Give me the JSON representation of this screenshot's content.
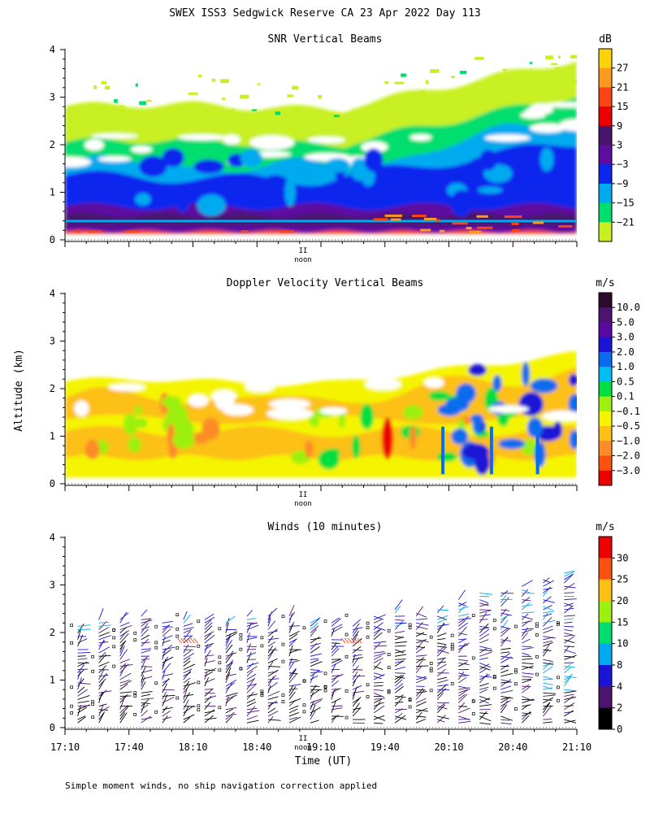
{
  "figure_title": "SWEX ISS3 Sedgwick Reserve CA  23 Apr 2022 Day 113",
  "footnote": "Simple moment winds, no ship navigation correction applied",
  "y_axis_label": "Altitude (km)",
  "x_axis_label": "Time (UT)",
  "noon_label": "noon",
  "noon_mark": "II",
  "chart_data": [
    {
      "type": "heatmap",
      "title": "SNR Vertical Beams",
      "ylim": [
        0,
        4
      ],
      "yticks": [
        "0",
        "1",
        "2",
        "3",
        "4"
      ],
      "colorbar_unit": "dB",
      "colorbar_labels": [
        "27",
        "21",
        "15",
        "9",
        "3",
        "−3",
        "−9",
        "−15",
        "−21"
      ],
      "colorbar_colors": [
        "#fcd20a",
        "#fb9a1e",
        "#fa4414",
        "#ee0000",
        "#48146c",
        "#5d0da0",
        "#0c26ee",
        "#00aaee",
        "#00de6e",
        "#c8f020"
      ]
    },
    {
      "type": "heatmap",
      "title": "Doppler Velocity Vertical Beams",
      "ylim": [
        0,
        4
      ],
      "yticks": [
        "0",
        "1",
        "2",
        "3",
        "4"
      ],
      "colorbar_unit": "m/s",
      "colorbar_labels": [
        "10.0",
        "5.0",
        "3.0",
        "2.0",
        "1.0",
        "0.5",
        "0.1",
        "−0.1",
        "−0.5",
        "−1.0",
        "−2.0",
        "−3.0"
      ],
      "colorbar_colors": [
        "#2c0a28",
        "#4a1470",
        "#5a0aa0",
        "#1a14d6",
        "#0a6cee",
        "#00bef0",
        "#00de40",
        "#9cf010",
        "#f4f400",
        "#fcc014",
        "#fc8c28",
        "#fa5010",
        "#ee0000"
      ]
    },
    {
      "type": "scatter",
      "title": "Winds (10 minutes)",
      "ylim": [
        0,
        4
      ],
      "yticks": [
        "0",
        "1",
        "2",
        "3",
        "4"
      ],
      "colorbar_unit": "m/s",
      "colorbar_labels": [
        "30",
        "25",
        "20",
        "15",
        "10",
        "8",
        "4",
        "2",
        "0"
      ],
      "colorbar_colors": [
        "#ee0000",
        "#fa5010",
        "#fcc014",
        "#9cf010",
        "#00de6e",
        "#00aaee",
        "#1a14d6",
        "#4a1470",
        "#000000"
      ],
      "x_tick_labels": [
        "17:10",
        "17:40",
        "18:10",
        "18:40",
        "19:10",
        "19:40",
        "20:10",
        "20:40",
        "21:10"
      ]
    }
  ]
}
